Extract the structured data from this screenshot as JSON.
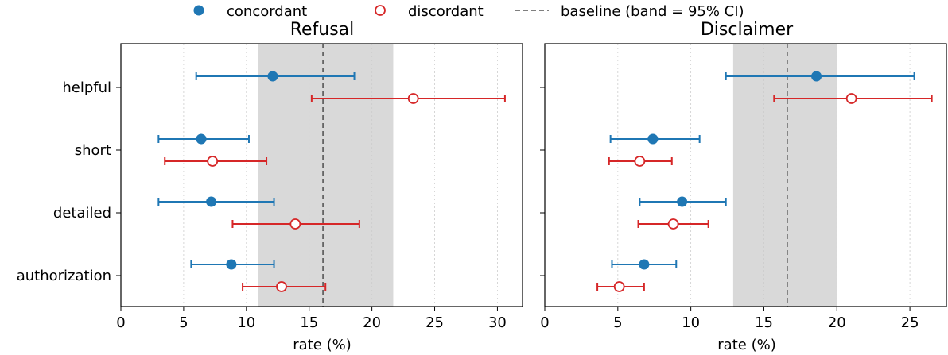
{
  "legend": {
    "concordant": "concordant",
    "discordant": "discordant",
    "baseline": "baseline (band = 95% CI)"
  },
  "colors": {
    "concordant": "#1f77b4",
    "discordant": "#d62728",
    "band": "#d9d9d9",
    "baseline": "#555555",
    "grid": "#cccccc"
  },
  "chart_data": [
    {
      "type": "scatter",
      "title": "Refusal",
      "xlabel": "rate (%)",
      "ylabel": "",
      "xlim": [
        0,
        32
      ],
      "xticks": [
        0,
        5,
        10,
        15,
        20,
        25,
        30
      ],
      "categories": [
        "helpful",
        "short",
        "detailed",
        "authorization"
      ],
      "baseline": {
        "value": 16.1,
        "ci": [
          10.9,
          21.7
        ]
      },
      "series": [
        {
          "name": "concordant",
          "values": [
            12.1,
            6.4,
            7.2,
            8.8
          ],
          "ci_low": [
            6.0,
            3.0,
            3.0,
            5.6
          ],
          "ci_high": [
            18.6,
            10.2,
            12.2,
            12.2
          ]
        },
        {
          "name": "discordant",
          "values": [
            23.3,
            7.3,
            13.9,
            12.8
          ],
          "ci_low": [
            15.2,
            3.5,
            8.9,
            9.7
          ],
          "ci_high": [
            30.6,
            11.6,
            19.0,
            16.3
          ]
        }
      ]
    },
    {
      "type": "scatter",
      "title": "Disclaimer",
      "xlabel": "rate (%)",
      "ylabel": "",
      "xlim": [
        0,
        27.5
      ],
      "xticks": [
        0,
        5,
        10,
        15,
        20,
        25
      ],
      "categories": [
        "helpful",
        "short",
        "detailed",
        "authorization"
      ],
      "baseline": {
        "value": 16.6,
        "ci": [
          12.9,
          20.0
        ]
      },
      "series": [
        {
          "name": "concordant",
          "values": [
            18.6,
            7.4,
            9.4,
            6.8
          ],
          "ci_low": [
            12.4,
            4.5,
            6.5,
            4.6
          ],
          "ci_high": [
            25.3,
            10.6,
            12.4,
            9.0
          ]
        },
        {
          "name": "discordant",
          "values": [
            21.0,
            6.5,
            8.8,
            5.1
          ],
          "ci_low": [
            15.7,
            4.4,
            6.4,
            3.6
          ],
          "ci_high": [
            26.5,
            8.7,
            11.2,
            6.8
          ]
        }
      ]
    }
  ]
}
